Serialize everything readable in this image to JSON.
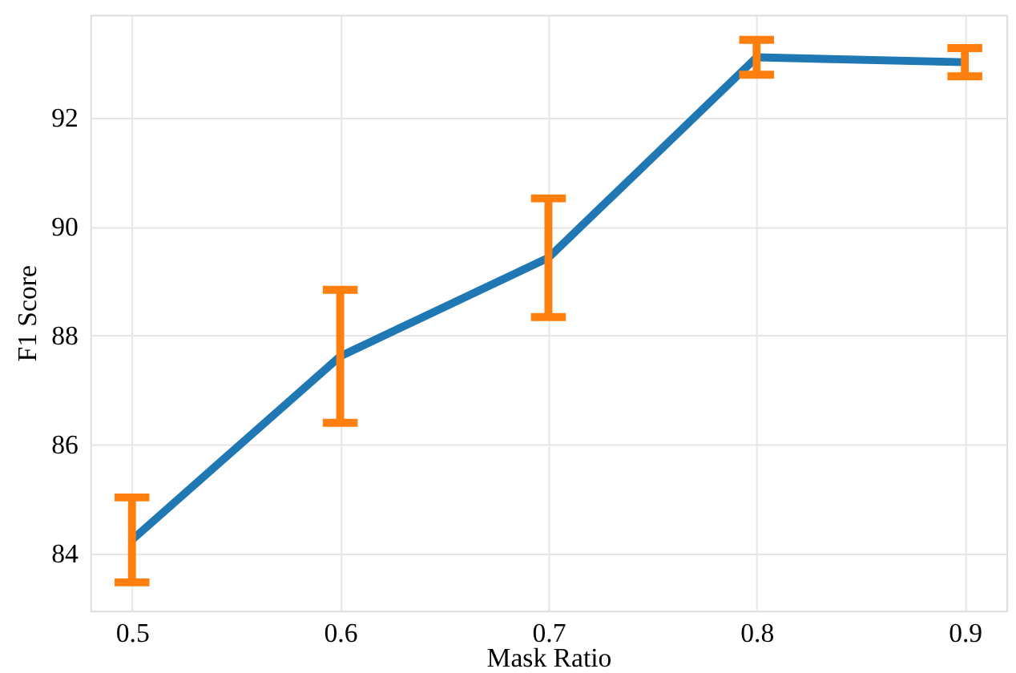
{
  "chart_data": {
    "type": "line",
    "xlabel": "Mask Ratio",
    "ylabel": "F1 Score",
    "x": [
      0.5,
      0.6,
      0.7,
      0.8,
      0.9
    ],
    "series": [
      {
        "color": "#1f77b4",
        "values": [
          84.25,
          87.62,
          89.43,
          93.11,
          93.02
        ],
        "errors": [
          0.78,
          1.22,
          1.09,
          0.32,
          0.26
        ]
      }
    ],
    "xlim": [
      0.48,
      0.92
    ],
    "xticks": [
      0.5,
      0.6,
      0.7,
      0.8,
      0.9
    ],
    "ylim": [
      82.95,
      93.89
    ],
    "yticks": [
      84,
      86,
      88,
      90,
      92
    ],
    "grid": true,
    "marker": "none",
    "line_style": "solid"
  }
}
